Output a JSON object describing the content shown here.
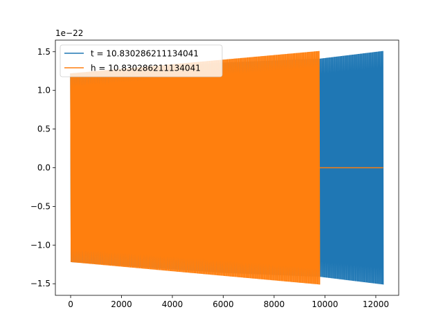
{
  "chart_data": {
    "type": "line",
    "title": "",
    "xlabel": "",
    "ylabel": "",
    "offset_text": "1e−22",
    "xlim": [
      -600,
      12900
    ],
    "ylim": [
      -1.65,
      1.65
    ],
    "x_ticks": [
      0,
      2000,
      4000,
      6000,
      8000,
      10000,
      12000
    ],
    "x_tick_labels": [
      "0",
      "2000",
      "4000",
      "6000",
      "8000",
      "10000",
      "12000"
    ],
    "y_ticks": [
      -1.5,
      -1.0,
      -0.5,
      0.0,
      0.5,
      1.0,
      1.5
    ],
    "y_tick_labels": [
      "−1.5",
      "−1.0",
      "−0.5",
      "0.0",
      "0.5",
      "1.0",
      "1.5"
    ],
    "grid": false,
    "legend_position": "top-left",
    "series": [
      {
        "name": "t = 10.830286211134041",
        "color": "#1f77b4",
        "x_range": [
          0,
          12290
        ],
        "envelope_upper": [
          [
            0,
            1.22
          ],
          [
            6000,
            1.36
          ],
          [
            9790,
            1.41
          ],
          [
            12290,
            1.51
          ]
        ],
        "envelope_lower": [
          [
            0,
            -1.22
          ],
          [
            6000,
            -1.36
          ],
          [
            9790,
            -1.41
          ],
          [
            12290,
            -1.51
          ]
        ]
      },
      {
        "name": "h = 10.830286211134041",
        "color": "#ff7f0e",
        "x_range": [
          0,
          12290
        ],
        "envelope_upper": [
          [
            0,
            1.22
          ],
          [
            9790,
            1.51
          ]
        ],
        "envelope_lower": [
          [
            0,
            -1.22
          ],
          [
            9790,
            -1.51
          ]
        ],
        "zero_after": 9790
      }
    ]
  }
}
